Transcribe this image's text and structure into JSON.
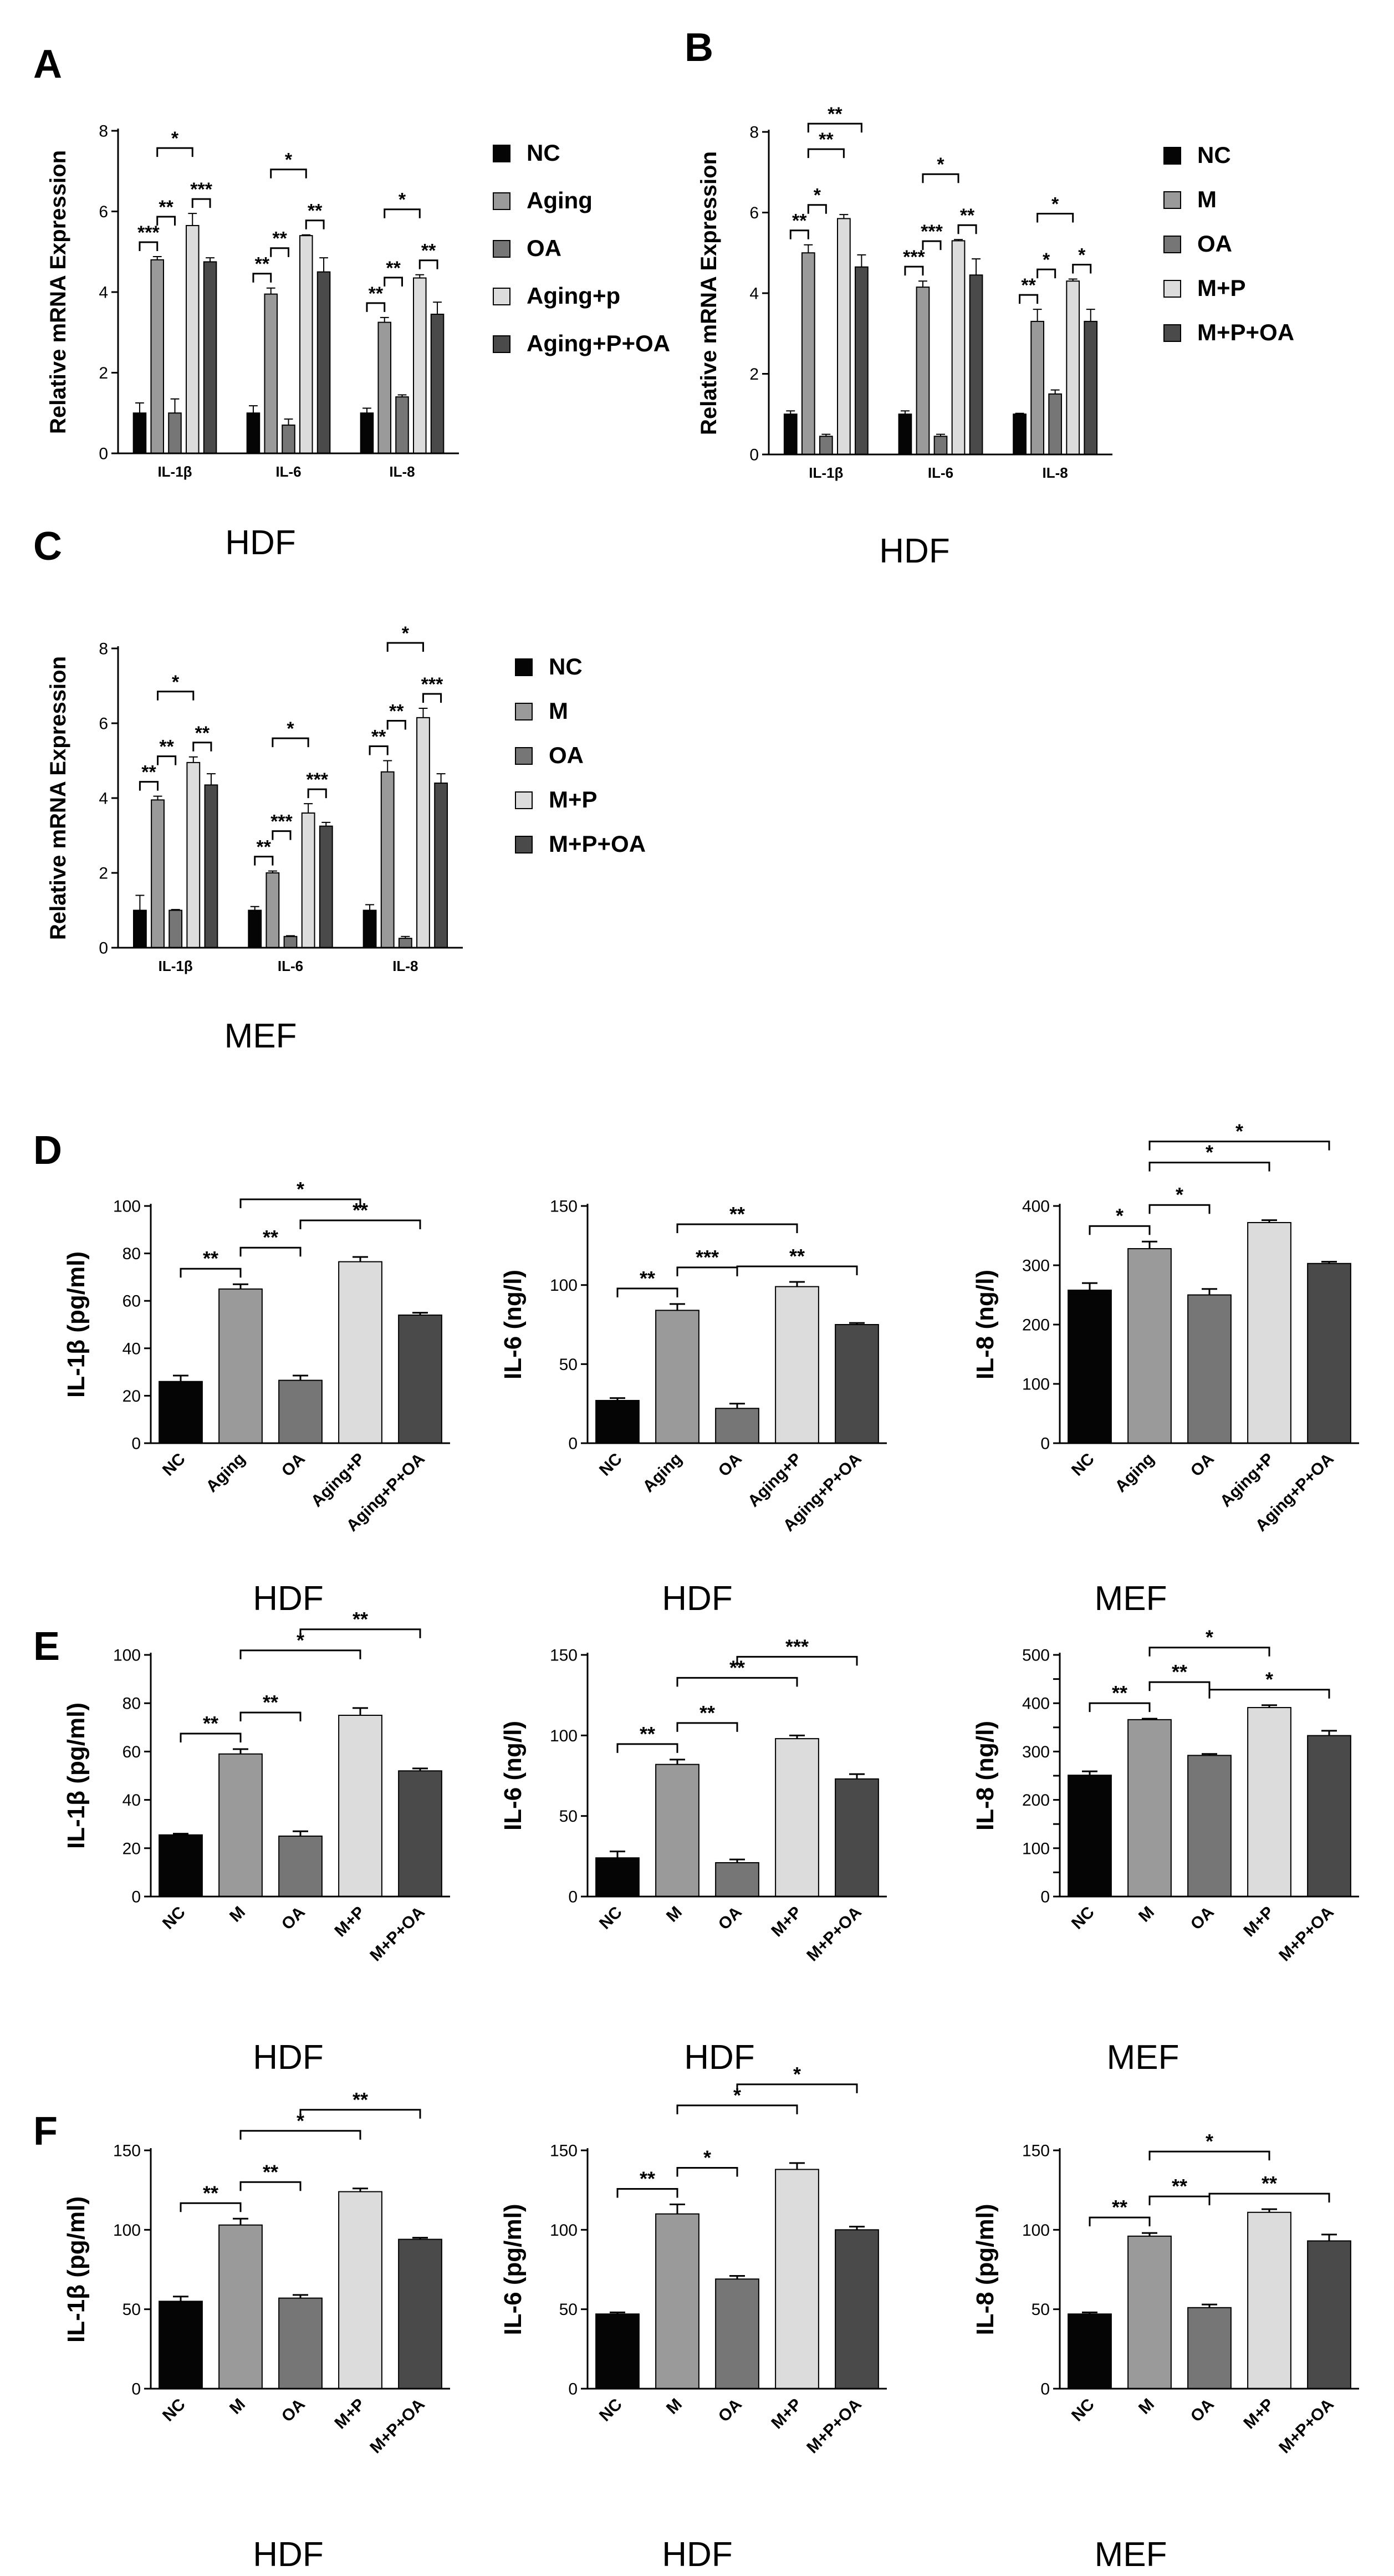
{
  "figure": {
    "panel_letters": [
      "A",
      "B",
      "C",
      "D",
      "E",
      "F"
    ]
  },
  "style": {
    "series_colors": {
      "NC": "#050505",
      "Aging": "#9a9a9a",
      "M": "#9a9a9a",
      "OA": "#767676",
      "Aging+p": "#dcdcdc",
      "Aging+P": "#dcdcdc",
      "M+P": "#dcdcdc",
      "Aging+P+OA": "#4a4a4a",
      "M+P+OA": "#4a4a4a"
    },
    "axis_color": "#000000"
  },
  "chart_data": [
    {
      "panel": "A",
      "type": "bar",
      "title": "HDF",
      "ylabel": "Relative mRNA Expression",
      "ylim": [
        0,
        8
      ],
      "yticks": [
        0,
        2,
        4,
        6,
        8
      ],
      "categories": [
        "IL-1β",
        "IL-6",
        "IL-8"
      ],
      "legend": [
        "NC",
        "Aging",
        "OA",
        "Aging+p",
        "Aging+P+OA"
      ],
      "series": [
        {
          "name": "NC",
          "values": [
            1.0,
            1.0,
            1.0
          ],
          "errors": [
            0.25,
            0.18,
            0.12
          ]
        },
        {
          "name": "Aging",
          "values": [
            4.8,
            3.95,
            3.25
          ],
          "errors": [
            0.08,
            0.15,
            0.12
          ]
        },
        {
          "name": "OA",
          "values": [
            1.0,
            0.7,
            1.4
          ],
          "errors": [
            0.35,
            0.15,
            0.05
          ]
        },
        {
          "name": "Aging+p",
          "values": [
            5.65,
            5.4,
            4.35
          ],
          "errors": [
            0.3,
            0.02,
            0.08
          ]
        },
        {
          "name": "Aging+P+OA",
          "values": [
            4.75,
            4.5,
            3.45
          ],
          "errors": [
            0.1,
            0.35,
            0.3
          ]
        }
      ],
      "significance": [
        {
          "group": 0,
          "from": 0,
          "to": 1,
          "label": "***",
          "level": 0
        },
        {
          "group": 0,
          "from": 1,
          "to": 2,
          "label": "**",
          "level": 1
        },
        {
          "group": 0,
          "from": 1,
          "to": 3,
          "label": "*",
          "level": 2
        },
        {
          "group": 0,
          "from": 3,
          "to": 4,
          "label": "***",
          "level": 0
        },
        {
          "group": 1,
          "from": 0,
          "to": 1,
          "label": "**",
          "level": 0
        },
        {
          "group": 1,
          "from": 1,
          "to": 2,
          "label": "**",
          "level": 1
        },
        {
          "group": 1,
          "from": 1,
          "to": 3,
          "label": "*",
          "level": 2
        },
        {
          "group": 1,
          "from": 3,
          "to": 4,
          "label": "**",
          "level": 0
        },
        {
          "group": 2,
          "from": 0,
          "to": 1,
          "label": "**",
          "level": 0
        },
        {
          "group": 2,
          "from": 1,
          "to": 2,
          "label": "**",
          "level": 1
        },
        {
          "group": 2,
          "from": 1,
          "to": 3,
          "label": "*",
          "level": 2
        },
        {
          "group": 2,
          "from": 3,
          "to": 4,
          "label": "**",
          "level": 0
        }
      ]
    },
    {
      "panel": "B",
      "type": "bar",
      "title": "HDF",
      "ylabel": "Relative mRNA Expression",
      "ylim": [
        0,
        8
      ],
      "yticks": [
        0,
        2,
        4,
        6,
        8
      ],
      "categories": [
        "IL-1β",
        "IL-6",
        "IL-8"
      ],
      "legend": [
        "NC",
        "M",
        "OA",
        "M+P",
        "M+P+OA"
      ],
      "series": [
        {
          "name": "NC",
          "values": [
            1.0,
            1.0,
            1.0
          ],
          "errors": [
            0.08,
            0.08,
            0.02
          ]
        },
        {
          "name": "M",
          "values": [
            5.0,
            4.15,
            3.3
          ],
          "errors": [
            0.2,
            0.15,
            0.3
          ]
        },
        {
          "name": "OA",
          "values": [
            0.45,
            0.45,
            1.5
          ],
          "errors": [
            0.05,
            0.05,
            0.1
          ]
        },
        {
          "name": "M+P",
          "values": [
            5.85,
            5.3,
            4.3
          ],
          "errors": [
            0.1,
            0.03,
            0.05
          ]
        },
        {
          "name": "M+P+OA",
          "values": [
            4.65,
            4.45,
            3.3
          ],
          "errors": [
            0.3,
            0.4,
            0.3
          ]
        }
      ],
      "significance": [
        {
          "group": 0,
          "from": 0,
          "to": 1,
          "label": "**",
          "level": 0
        },
        {
          "group": 0,
          "from": 1,
          "to": 2,
          "label": "*",
          "level": 1
        },
        {
          "group": 0,
          "from": 1,
          "to": 3,
          "label": "**",
          "level": 2
        },
        {
          "group": 0,
          "from": 1,
          "to": 4,
          "label": "**",
          "level": 3
        },
        {
          "group": 1,
          "from": 0,
          "to": 1,
          "label": "***",
          "level": 0
        },
        {
          "group": 1,
          "from": 1,
          "to": 2,
          "label": "***",
          "level": 1
        },
        {
          "group": 1,
          "from": 1,
          "to": 3,
          "label": "*",
          "level": 2
        },
        {
          "group": 1,
          "from": 3,
          "to": 4,
          "label": "**",
          "level": 0
        },
        {
          "group": 2,
          "from": 0,
          "to": 1,
          "label": "**",
          "level": 0
        },
        {
          "group": 2,
          "from": 1,
          "to": 2,
          "label": "*",
          "level": 1
        },
        {
          "group": 2,
          "from": 1,
          "to": 3,
          "label": "*",
          "level": 2
        },
        {
          "group": 2,
          "from": 3,
          "to": 4,
          "label": "*",
          "level": 0
        }
      ]
    },
    {
      "panel": "C",
      "type": "bar",
      "title": "MEF",
      "ylabel": "Relative mRNA Expression",
      "ylim": [
        0,
        8
      ],
      "yticks": [
        0,
        2,
        4,
        6,
        8
      ],
      "categories": [
        "IL-1β",
        "IL-6",
        "IL-8"
      ],
      "legend": [
        "NC",
        "M",
        "OA",
        "M+P",
        "M+P+OA"
      ],
      "series": [
        {
          "name": "NC",
          "values": [
            1.0,
            1.0,
            1.0
          ],
          "errors": [
            0.4,
            0.1,
            0.15
          ]
        },
        {
          "name": "M",
          "values": [
            3.95,
            2.0,
            4.7
          ],
          "errors": [
            0.1,
            0.05,
            0.3
          ]
        },
        {
          "name": "OA",
          "values": [
            1.0,
            0.3,
            0.25
          ],
          "errors": [
            0.02,
            0.02,
            0.05
          ]
        },
        {
          "name": "M+P",
          "values": [
            4.95,
            3.6,
            6.15
          ],
          "errors": [
            0.15,
            0.25,
            0.25
          ]
        },
        {
          "name": "M+P+OA",
          "values": [
            4.35,
            3.25,
            4.4
          ],
          "errors": [
            0.3,
            0.1,
            0.25
          ]
        }
      ],
      "significance": [
        {
          "group": 0,
          "from": 0,
          "to": 1,
          "label": "**",
          "level": 0
        },
        {
          "group": 0,
          "from": 1,
          "to": 2,
          "label": "**",
          "level": 1
        },
        {
          "group": 0,
          "from": 1,
          "to": 3,
          "label": "*",
          "level": 2
        },
        {
          "group": 0,
          "from": 3,
          "to": 4,
          "label": "**",
          "level": 0
        },
        {
          "group": 1,
          "from": 0,
          "to": 1,
          "label": "**",
          "level": 0
        },
        {
          "group": 1,
          "from": 1,
          "to": 2,
          "label": "***",
          "level": 1
        },
        {
          "group": 1,
          "from": 1,
          "to": 3,
          "label": "*",
          "level": 2
        },
        {
          "group": 1,
          "from": 3,
          "to": 4,
          "label": "***",
          "level": 0
        },
        {
          "group": 2,
          "from": 0,
          "to": 1,
          "label": "**",
          "level": 0
        },
        {
          "group": 2,
          "from": 1,
          "to": 2,
          "label": "**",
          "level": 1
        },
        {
          "group": 2,
          "from": 1,
          "to": 3,
          "label": "*",
          "level": 2
        },
        {
          "group": 2,
          "from": 3,
          "to": 4,
          "label": "***",
          "level": 0
        }
      ]
    },
    {
      "panel": "D",
      "type": "bar",
      "title": "HDF",
      "ylabel": "IL-1β  (pg/ml)",
      "ylim": [
        0,
        100
      ],
      "yticks": [
        0,
        20,
        40,
        60,
        80,
        100
      ],
      "categories": [
        "NC",
        "Aging",
        "OA",
        "Aging+P",
        "Aging+P+OA"
      ],
      "values": [
        26,
        65,
        26.5,
        76.5,
        54
      ],
      "errors": [
        2.5,
        2,
        2,
        2,
        1
      ],
      "colors": [
        "NC",
        "Aging",
        "OA",
        "Aging+P",
        "Aging+P+OA"
      ],
      "significance": [
        {
          "from": 0,
          "to": 1,
          "label": "**",
          "level": 0
        },
        {
          "from": 1,
          "to": 2,
          "label": "**",
          "level": 1
        },
        {
          "from": 1,
          "to": 3,
          "label": "*",
          "level": 2
        },
        {
          "from": 2,
          "to": 4,
          "label": "**",
          "level": 1
        }
      ]
    },
    {
      "panel": "D",
      "type": "bar",
      "title": "HDF",
      "ylabel": "IL-6  (ng/l)",
      "ylim": [
        0,
        150
      ],
      "yticks": [
        0,
        50,
        100,
        150
      ],
      "categories": [
        "NC",
        "Aging",
        "OA",
        "Aging+P",
        "Aging+P+OA"
      ],
      "values": [
        27,
        84,
        22,
        99,
        75
      ],
      "errors": [
        1.5,
        4,
        3,
        3,
        1
      ],
      "colors": [
        "NC",
        "Aging",
        "OA",
        "Aging+P",
        "Aging+P+OA"
      ],
      "significance": [
        {
          "from": 0,
          "to": 1,
          "label": "**",
          "level": 0
        },
        {
          "from": 1,
          "to": 2,
          "label": "***",
          "level": 1
        },
        {
          "from": 1,
          "to": 3,
          "label": "**",
          "level": 2
        },
        {
          "from": 2,
          "to": 4,
          "label": "**",
          "level": 0
        }
      ]
    },
    {
      "panel": "D",
      "type": "bar",
      "title": "MEF",
      "ylabel": "IL-8  (ng/l)",
      "ylim": [
        0,
        400
      ],
      "yticks": [
        0,
        100,
        200,
        300,
        400
      ],
      "categories": [
        "NC",
        "Aging",
        "OA",
        "Aging+P",
        "Aging+P+OA"
      ],
      "values": [
        258,
        328,
        250,
        372,
        303
      ],
      "errors": [
        12,
        12,
        10,
        4,
        3
      ],
      "colors": [
        "NC",
        "Aging",
        "OA",
        "Aging+P",
        "Aging+P+OA"
      ],
      "significance": [
        {
          "from": 0,
          "to": 1,
          "label": "*",
          "level": 0
        },
        {
          "from": 1,
          "to": 2,
          "label": "*",
          "level": 1
        },
        {
          "from": 1,
          "to": 3,
          "label": "*",
          "level": 2
        },
        {
          "from": 1,
          "to": 4,
          "label": "*",
          "level": 3
        }
      ]
    },
    {
      "panel": "E",
      "type": "bar",
      "title": "HDF",
      "ylabel": "IL-1β  (pg/ml)",
      "ylim": [
        0,
        100
      ],
      "yticks": [
        0,
        20,
        40,
        60,
        80,
        100
      ],
      "categories": [
        "NC",
        "M",
        "OA",
        "M+P",
        "M+P+OA"
      ],
      "values": [
        25.5,
        59,
        25,
        75,
        52
      ],
      "errors": [
        0.5,
        2,
        2,
        3,
        1
      ],
      "colors": [
        "NC",
        "M",
        "OA",
        "M+P",
        "M+P+OA"
      ],
      "significance": [
        {
          "from": 0,
          "to": 1,
          "label": "**",
          "level": 0
        },
        {
          "from": 1,
          "to": 2,
          "label": "**",
          "level": 1
        },
        {
          "from": 1,
          "to": 3,
          "label": "*",
          "level": 2
        },
        {
          "from": 2,
          "to": 4,
          "label": "**",
          "level": 3
        }
      ]
    },
    {
      "panel": "E",
      "type": "bar",
      "title": "HDF",
      "ylabel": "IL-6  (ng/l)",
      "ylim": [
        0,
        150
      ],
      "yticks": [
        0,
        50,
        100,
        150
      ],
      "categories": [
        "NC",
        "M",
        "OA",
        "M+P",
        "M+P+OA"
      ],
      "values": [
        24,
        82,
        21,
        98,
        73
      ],
      "errors": [
        4,
        3,
        2,
        2,
        3
      ],
      "colors": [
        "NC",
        "M",
        "OA",
        "M+P",
        "M+P+OA"
      ],
      "significance": [
        {
          "from": 0,
          "to": 1,
          "label": "**",
          "level": 0
        },
        {
          "from": 1,
          "to": 2,
          "label": "**",
          "level": 1
        },
        {
          "from": 1,
          "to": 3,
          "label": "**",
          "level": 2
        },
        {
          "from": 2,
          "to": 4,
          "label": "***",
          "level": 3
        }
      ]
    },
    {
      "panel": "E",
      "type": "bar",
      "title": "MEF",
      "ylabel": "IL-8  (ng/l)",
      "ylim": [
        0,
        500
      ],
      "yticks": [
        0,
        50,
        100,
        150,
        200,
        250,
        300,
        350,
        400,
        450,
        500
      ],
      "ytick_labels": [
        "0",
        "",
        "100",
        "",
        "200",
        "",
        "300",
        "",
        "400",
        "",
        "500"
      ],
      "categories": [
        "NC",
        "M",
        "OA",
        "M+P",
        "M+P+OA"
      ],
      "values": [
        251,
        366,
        292,
        391,
        333
      ],
      "errors": [
        8,
        2,
        3,
        5,
        10
      ],
      "colors": [
        "NC",
        "M",
        "OA",
        "M+P",
        "M+P+OA"
      ],
      "significance": [
        {
          "from": 0,
          "to": 1,
          "label": "**",
          "level": 0
        },
        {
          "from": 1,
          "to": 2,
          "label": "**",
          "level": 1
        },
        {
          "from": 1,
          "to": 3,
          "label": "*",
          "level": 2
        },
        {
          "from": 2,
          "to": 4,
          "label": "*",
          "level": 0
        }
      ]
    },
    {
      "panel": "F",
      "type": "bar",
      "title": "HDF",
      "ylabel": "IL-1β  (pg/ml)",
      "ylim": [
        0,
        150
      ],
      "yticks": [
        0,
        50,
        100,
        150
      ],
      "categories": [
        "NC",
        "M",
        "OA",
        "M+P",
        "M+P+OA"
      ],
      "values": [
        55,
        103,
        57,
        124,
        94
      ],
      "errors": [
        3,
        4,
        2,
        2,
        1
      ],
      "colors": [
        "NC",
        "M",
        "OA",
        "M+P",
        "M+P+OA"
      ],
      "significance": [
        {
          "from": 0,
          "to": 1,
          "label": "**",
          "level": 0
        },
        {
          "from": 1,
          "to": 2,
          "label": "**",
          "level": 1
        },
        {
          "from": 1,
          "to": 3,
          "label": "*",
          "level": 2
        },
        {
          "from": 2,
          "to": 4,
          "label": "**",
          "level": 3
        }
      ]
    },
    {
      "panel": "F",
      "type": "bar",
      "title": "HDF",
      "ylabel": "IL-6  (pg/ml)",
      "ylim": [
        0,
        150
      ],
      "yticks": [
        0,
        50,
        100,
        150
      ],
      "categories": [
        "NC",
        "M",
        "OA",
        "M+P",
        "M+P+OA"
      ],
      "values": [
        47,
        110,
        69,
        138,
        100
      ],
      "errors": [
        1,
        6,
        2,
        4,
        2
      ],
      "colors": [
        "NC",
        "M",
        "OA",
        "M+P",
        "M+P+OA"
      ],
      "significance": [
        {
          "from": 0,
          "to": 1,
          "label": "**",
          "level": 0
        },
        {
          "from": 1,
          "to": 2,
          "label": "*",
          "level": 1
        },
        {
          "from": 1,
          "to": 3,
          "label": "*",
          "level": 2
        },
        {
          "from": 2,
          "to": 4,
          "label": "*",
          "level": 3
        }
      ]
    },
    {
      "panel": "F",
      "type": "bar",
      "title": "MEF",
      "ylabel": "IL-8  (pg/ml)",
      "ylim": [
        0,
        150
      ],
      "yticks": [
        0,
        50,
        100,
        150
      ],
      "categories": [
        "NC",
        "M",
        "OA",
        "M+P",
        "M+P+OA"
      ],
      "values": [
        47,
        96,
        51,
        111,
        93
      ],
      "errors": [
        1,
        2,
        2,
        2,
        4
      ],
      "colors": [
        "NC",
        "M",
        "OA",
        "M+P",
        "M+P+OA"
      ],
      "significance": [
        {
          "from": 0,
          "to": 1,
          "label": "**",
          "level": 0
        },
        {
          "from": 1,
          "to": 2,
          "label": "**",
          "level": 1
        },
        {
          "from": 1,
          "to": 3,
          "label": "*",
          "level": 2
        },
        {
          "from": 2,
          "to": 4,
          "label": "**",
          "level": 0
        }
      ]
    }
  ]
}
